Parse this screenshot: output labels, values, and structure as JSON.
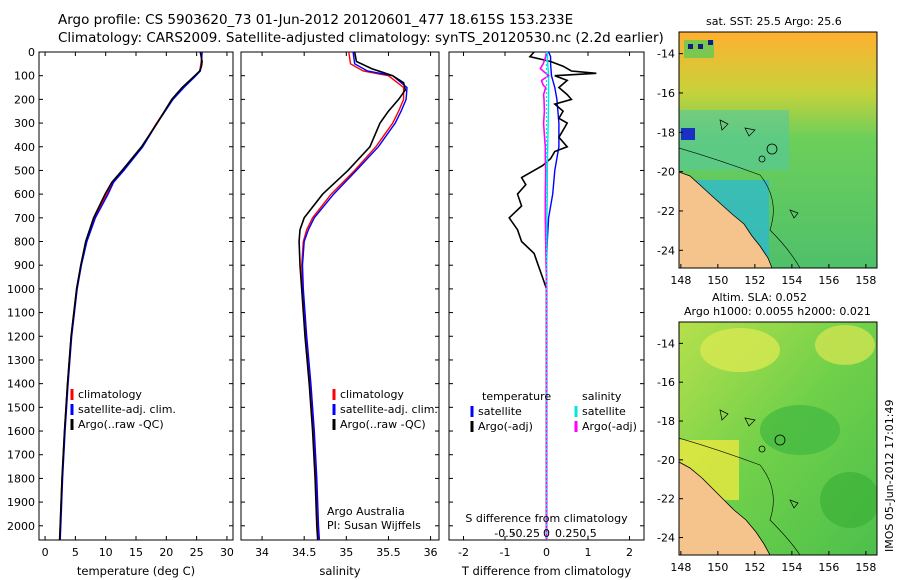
{
  "titles": {
    "line1": "Argo profile: CS 5903620_73 01-Jun-2012 20120601_477 18.615S 153.233E",
    "line2": "Climatology: CARS2009. Satellite-adjusted climatology: synTS_20120530.nc (2.2d earlier)"
  },
  "colors": {
    "climatology": "#ff0000",
    "satellite": "#0000ff",
    "argo": "#000000",
    "satellite_s": "#00e5e5",
    "argo_s": "#ff00ff"
  },
  "chart_data": [
    {
      "type": "line",
      "id": "temperature",
      "xlabel": "temperature (deg C)",
      "xlim": [
        -1,
        31
      ],
      "ylim": [
        2060,
        0
      ],
      "xticks": [
        0,
        5,
        10,
        15,
        20,
        25,
        30
      ],
      "xtick_labels": [
        "0",
        "5",
        "10",
        "15",
        "20",
        "25",
        "30"
      ],
      "yticks": [
        0,
        100,
        200,
        300,
        400,
        500,
        600,
        700,
        800,
        900,
        1000,
        1100,
        1200,
        1300,
        1400,
        1500,
        1600,
        1700,
        1800,
        1900,
        2000
      ],
      "ytick_labels": [
        "0",
        "100",
        "200",
        "300",
        "400",
        "500",
        "600",
        "700",
        "800",
        "900",
        "1000",
        "1100",
        "1200",
        "1300",
        "1400",
        "1500",
        "1600",
        "1700",
        "1800",
        "1900",
        "2000"
      ],
      "legend": [
        "climatology",
        "satellite-adj. clim.",
        "Argo(..raw -QC)"
      ],
      "series": [
        {
          "name": "climatology",
          "depth": [
            0,
            50,
            80,
            100,
            150,
            200,
            300,
            400,
            500,
            550,
            600,
            700,
            800,
            900,
            1000,
            1200,
            1400,
            1600,
            1800,
            2000,
            2060
          ],
          "values": [
            25.9,
            25.7,
            25.5,
            24.8,
            22.8,
            21.0,
            18.4,
            16.0,
            12.8,
            11.2,
            10.2,
            8.1,
            6.8,
            5.9,
            5.2,
            4.3,
            3.7,
            3.2,
            2.8,
            2.5,
            2.4
          ]
        },
        {
          "name": "satellite",
          "depth": [
            0,
            50,
            80,
            100,
            150,
            200,
            300,
            400,
            500,
            550,
            600,
            700,
            800,
            900,
            1000,
            1200,
            1400,
            1600,
            1800,
            2000,
            2060
          ],
          "values": [
            25.9,
            25.8,
            25.6,
            24.9,
            22.9,
            21.1,
            18.5,
            16.1,
            13.0,
            11.3,
            10.4,
            8.3,
            6.9,
            6.0,
            5.3,
            4.4,
            3.8,
            3.3,
            2.9,
            2.6,
            2.5
          ]
        },
        {
          "name": "argo",
          "depth": [
            0,
            40,
            60,
            80,
            100,
            150,
            200,
            300,
            400,
            500,
            550,
            600,
            700,
            800,
            900,
            1000,
            1200,
            1400,
            1600,
            1800,
            2000,
            2060
          ],
          "values": [
            25.6,
            25.9,
            25.8,
            25.5,
            24.7,
            22.6,
            20.9,
            18.5,
            15.9,
            12.7,
            11.0,
            9.9,
            8.0,
            6.7,
            5.9,
            5.2,
            4.3,
            3.7,
            3.2,
            2.8,
            2.5,
            2.4
          ]
        }
      ]
    },
    {
      "type": "line",
      "id": "salinity",
      "xlabel": "salinity",
      "xlim": [
        33.75,
        36.1
      ],
      "ylim": [
        2060,
        0
      ],
      "xticks": [
        34,
        34.5,
        35,
        35.5,
        36
      ],
      "xtick_labels": [
        "34",
        "34.5",
        "35",
        "35.5",
        "36"
      ],
      "legend": [
        "climatology",
        "satellite-adj. clim.",
        "Argo(..raw -QC)"
      ],
      "annotation": [
        "Argo Australia",
        "PI: Susan Wijffels"
      ],
      "series": [
        {
          "name": "climatology",
          "depth": [
            0,
            50,
            80,
            100,
            150,
            200,
            250,
            300,
            400,
            500,
            600,
            700,
            750,
            800,
            900,
            1000,
            1200,
            1400,
            1600,
            1800,
            2000,
            2060
          ],
          "values": [
            35.03,
            35.05,
            35.2,
            35.5,
            35.68,
            35.68,
            35.62,
            35.55,
            35.35,
            35.1,
            34.82,
            34.6,
            34.53,
            34.49,
            34.47,
            34.48,
            34.52,
            34.57,
            34.61,
            34.64,
            34.66,
            34.67
          ]
        },
        {
          "name": "satellite",
          "depth": [
            0,
            50,
            80,
            100,
            150,
            200,
            250,
            300,
            400,
            500,
            600,
            700,
            750,
            800,
            900,
            1000,
            1200,
            1400,
            1600,
            1800,
            2000,
            2060
          ],
          "values": [
            35.08,
            35.1,
            35.25,
            35.55,
            35.72,
            35.71,
            35.65,
            35.58,
            35.38,
            35.12,
            34.85,
            34.62,
            34.55,
            34.5,
            34.48,
            34.49,
            34.53,
            34.58,
            34.62,
            34.65,
            34.67,
            34.68
          ]
        },
        {
          "name": "argo",
          "depth": [
            0,
            40,
            70,
            100,
            130,
            160,
            200,
            250,
            300,
            400,
            500,
            600,
            700,
            750,
            800,
            900,
            1000,
            1200,
            1400,
            1600,
            1800,
            2000,
            2060
          ],
          "values": [
            35.1,
            35.12,
            35.3,
            35.55,
            35.68,
            35.7,
            35.62,
            35.5,
            35.4,
            35.28,
            35.02,
            34.72,
            34.5,
            34.45,
            34.44,
            34.45,
            34.47,
            34.51,
            34.56,
            34.6,
            34.63,
            34.65,
            34.66
          ]
        }
      ]
    },
    {
      "type": "line",
      "id": "difference",
      "xlabel": "T difference from climatology",
      "xlabel2": "S difference from climatology",
      "xlim": [
        -2.35,
        2.35
      ],
      "ylim": [
        2060,
        0
      ],
      "xticks": [
        -2,
        -1,
        0,
        1,
        2
      ],
      "xtick_labels": [
        "-2",
        "-1",
        "0",
        "1",
        "2"
      ],
      "s_ticks": [
        -0.5,
        -0.25,
        0,
        0.25,
        0.5
      ],
      "s_tick_labels": [
        "-0.5",
        "-0.25",
        "0",
        "0.25",
        "0.5"
      ],
      "legend_t": [
        "temperature",
        "satellite",
        "Argo(-adj)"
      ],
      "legend_s": [
        "salinity",
        "satellite",
        "Argo(-adj)"
      ],
      "series": [
        {
          "name": "temperature satellite",
          "depth": [
            0,
            20,
            50,
            100,
            150,
            200,
            300,
            400,
            500,
            600,
            700,
            800,
            900,
            1000,
            1500,
            2000,
            2060
          ],
          "values": [
            0.05,
            0.1,
            0.1,
            0.12,
            0.2,
            0.25,
            0.3,
            0.3,
            0.2,
            0.15,
            0.05,
            0.02,
            0.0,
            0.0,
            0.0,
            0.0,
            0.0
          ]
        },
        {
          "name": "temperature argo",
          "depth": [
            0,
            20,
            40,
            60,
            80,
            90,
            100,
            120,
            150,
            180,
            200,
            220,
            250,
            280,
            300,
            330,
            360,
            400,
            420,
            450,
            480,
            500,
            530,
            560,
            600,
            650,
            700,
            750,
            800,
            850,
            900,
            950,
            1000,
            1500,
            2000,
            2060
          ],
          "values": [
            -0.3,
            -0.4,
            0.1,
            0.4,
            0.6,
            1.2,
            0.2,
            0.5,
            0.3,
            0.5,
            0.6,
            0.2,
            0.4,
            0.3,
            0.5,
            0.4,
            0.3,
            0.5,
            0.2,
            0.1,
            -0.1,
            -0.3,
            -0.6,
            -0.5,
            -0.7,
            -0.6,
            -0.9,
            -0.7,
            -0.6,
            -0.3,
            -0.2,
            -0.1,
            0.0,
            0.0,
            0.0,
            0.0
          ]
        },
        {
          "name": "salinity satellite",
          "depth": [
            0,
            50,
            100,
            150,
            200,
            300,
            400,
            500,
            600,
            700,
            800,
            1000,
            2000,
            2060
          ],
          "values": [
            0.02,
            0.03,
            0.05,
            0.05,
            0.05,
            0.04,
            0.03,
            0.02,
            0.02,
            0.01,
            0.01,
            0.0,
            0.0,
            0.0
          ]
        },
        {
          "name": "salinity argo",
          "depth": [
            0,
            20,
            50,
            70,
            100,
            120,
            140,
            150,
            180,
            200,
            250,
            300,
            350,
            400,
            450,
            500,
            600,
            700,
            800,
            900,
            950,
            1000,
            1500,
            2000,
            2060
          ],
          "values": [
            0.0,
            -0.02,
            -0.08,
            -0.15,
            0.05,
            -0.12,
            -0.08,
            -0.02,
            -0.07,
            -0.06,
            -0.05,
            -0.07,
            -0.05,
            -0.03,
            -0.03,
            -0.02,
            -0.03,
            -0.03,
            -0.02,
            -0.01,
            0.0,
            0.0,
            0.0,
            0.0,
            0.0
          ]
        }
      ]
    },
    {
      "type": "heatmap",
      "id": "sst-map",
      "title": "sat. SST: 25.5 Argo: 25.6",
      "xlim": [
        147.9,
        158.6
      ],
      "ylim": [
        -24.9,
        -12.9
      ],
      "xticks": [
        148,
        150,
        152,
        154,
        156,
        158
      ],
      "xtick_labels": [
        "148",
        "150",
        "152",
        "154",
        "156",
        "158"
      ],
      "yticks": [
        -14,
        -16,
        -18,
        -20,
        -22,
        -24
      ],
      "ytick_labels": [
        "-14",
        "-16",
        "-18",
        "-20",
        "-22",
        "-24"
      ]
    },
    {
      "type": "heatmap",
      "id": "sla-map",
      "title": "Altim. SLA: 0.052",
      "subtitle": "Argo h1000: 0.0055 h2000: 0.021",
      "xlim": [
        147.9,
        158.6
      ],
      "ylim": [
        -24.9,
        -12.9
      ],
      "xticks": [
        148,
        150,
        152,
        154,
        156,
        158
      ],
      "xtick_labels": [
        "148",
        "150",
        "152",
        "154",
        "156",
        "158"
      ],
      "yticks": [
        -14,
        -16,
        -18,
        -20,
        -22,
        -24
      ],
      "ytick_labels": [
        "-14",
        "-16",
        "-18",
        "-20",
        "-22",
        "-24"
      ]
    }
  ],
  "watermark": "IMOS 05-Jun-2012 17:01:49"
}
